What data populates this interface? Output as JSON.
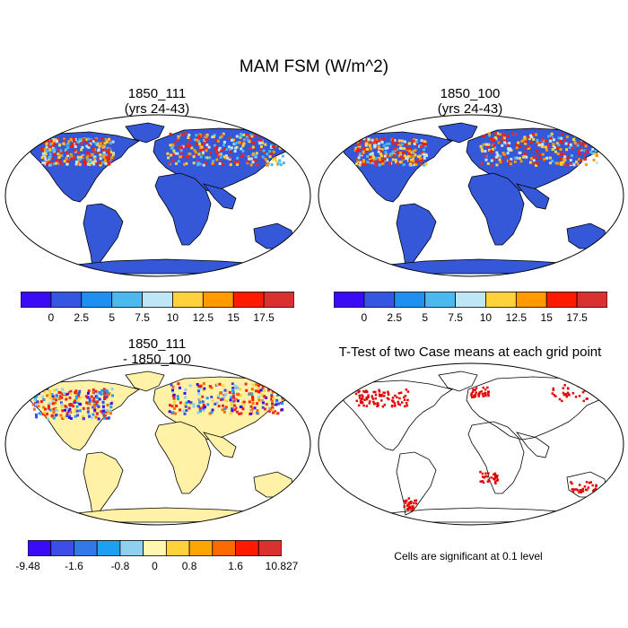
{
  "title": "MAM FSM (W/m^2)",
  "panels": [
    {
      "id": "p1",
      "title_line1": "1850_111",
      "title_line2": "(yrs 24-43)",
      "kind": "field"
    },
    {
      "id": "p2",
      "title_line1": "1850_100",
      "title_line2": "(yrs 24-43)",
      "kind": "field"
    },
    {
      "id": "p3",
      "title_line1": "1850_111",
      "title_line2": "- 1850_100",
      "kind": "difference"
    },
    {
      "id": "p4",
      "title_line1": "T-Test of two Case means at each grid point",
      "title_line2": "",
      "kind": "ttest"
    }
  ],
  "colorbar_field": {
    "colors": [
      "#3a0cf5",
      "#3556e0",
      "#1f8ff0",
      "#4cb8f0",
      "#bfe6f5",
      "#ffd23d",
      "#ff9a00",
      "#ff1a00",
      "#d93030"
    ],
    "labels": [
      "0",
      "2.5",
      "5",
      "7.5",
      "10",
      "12.5",
      "15",
      "17.5"
    ]
  },
  "colorbar_diff": {
    "colors": [
      "#3a0cf5",
      "#3d4ee6",
      "#3178e8",
      "#1ea0f0",
      "#8fd0f0",
      "#fff7b0",
      "#ffd23d",
      "#ffa500",
      "#ff6a00",
      "#ff1a00",
      "#d93030"
    ],
    "labels": [
      "-9.48",
      "-1.6",
      "-0.8",
      "0",
      "0.8",
      "1.6",
      "10.827"
    ]
  },
  "footnote": "Cells are significant at 0.1 level"
}
